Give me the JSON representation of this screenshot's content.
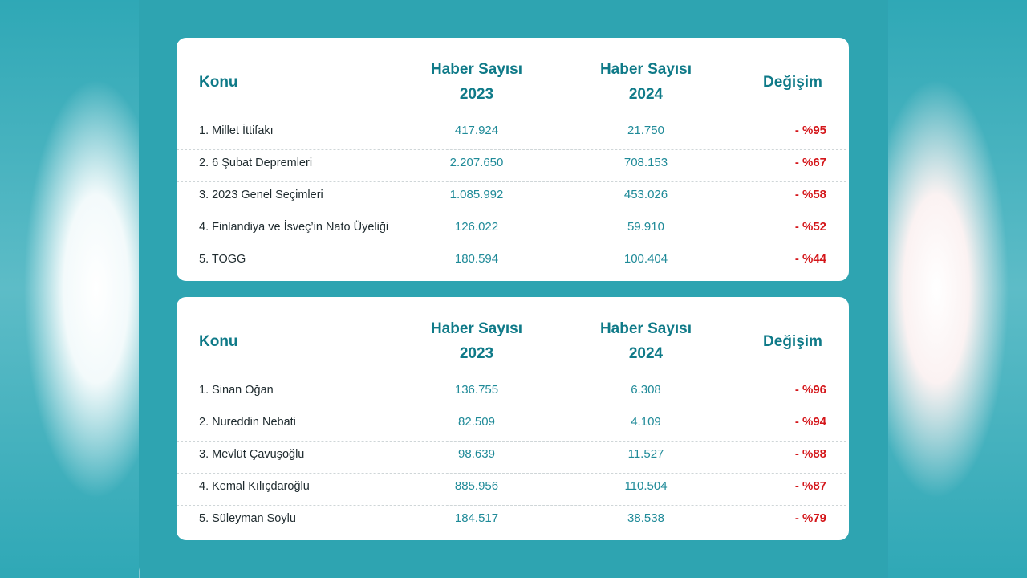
{
  "tables": [
    {
      "headers": {
        "topic": "Konu",
        "col1_line1": "Haber Sayısı",
        "col1_line2": "2023",
        "col2_line1": "Haber Sayısı",
        "col2_line2": "2024",
        "change": "Değişim"
      },
      "rows": [
        {
          "name": "1. Millet İttifakı",
          "v2023": "417.924",
          "v2024": "21.750",
          "change": "- %95"
        },
        {
          "name": "2. 6 Şubat Depremleri",
          "v2023": "2.207.650",
          "v2024": "708.153",
          "change": "- %67"
        },
        {
          "name": "3. 2023 Genel Seçimleri",
          "v2023": "1.085.992",
          "v2024": "453.026",
          "change": "- %58"
        },
        {
          "name": "4. Finlandiya ve İsveç’in Nato Üyeliği",
          "v2023": "126.022",
          "v2024": "59.910",
          "change": "- %52"
        },
        {
          "name": "5. TOGG",
          "v2023": "180.594",
          "v2024": "100.404",
          "change": "- %44"
        }
      ]
    },
    {
      "headers": {
        "topic": "Konu",
        "col1_line1": "Haber Sayısı",
        "col1_line2": "2023",
        "col2_line1": "Haber Sayısı",
        "col2_line2": "2024",
        "change": "Değişim"
      },
      "rows": [
        {
          "name": "1. Sinan Oğan",
          "v2023": "136.755",
          "v2024": "6.308",
          "change": "- %96"
        },
        {
          "name": "2. Nureddin Nebati",
          "v2023": "82.509",
          "v2024": "4.109",
          "change": "- %94"
        },
        {
          "name": "3. Mevlüt Çavuşoğlu",
          "v2023": "98.639",
          "v2024": "11.527",
          "change": "- %88"
        },
        {
          "name": "4. Kemal Kılıçdaroğlu",
          "v2023": "885.956",
          "v2024": "110.504",
          "change": "- %87"
        },
        {
          "name": "5. Süleyman Soylu",
          "v2023": "184.517",
          "v2024": "38.538",
          "change": "- %79"
        }
      ]
    }
  ],
  "colors": {
    "panel": "#2ea4b1",
    "header_text": "#0f7a88",
    "value_text": "#1f8a98",
    "change_text": "#d4161a"
  }
}
